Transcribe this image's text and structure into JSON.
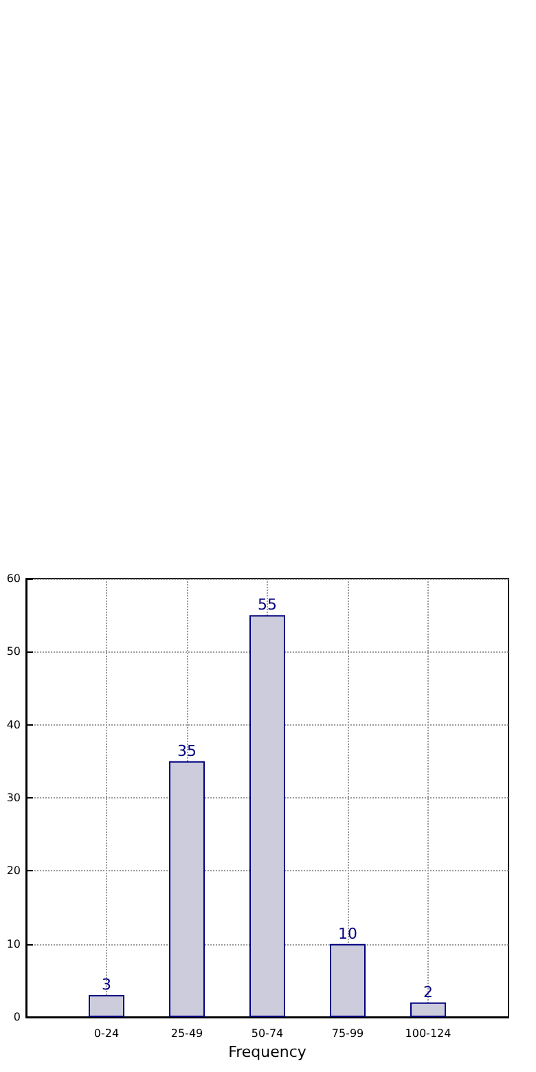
{
  "chart_data": {
    "type": "bar",
    "xlabel": "Frequency",
    "categories": [
      "0-24",
      "25-49",
      "50-74",
      "75-99",
      "100-124"
    ],
    "values": [
      3,
      35,
      55,
      10,
      2
    ],
    "color": "#ccccdd",
    "ylim": [
      0,
      60
    ],
    "yticks": [
      0,
      10,
      20,
      30,
      40,
      50,
      60
    ],
    "grid": true,
    "data_labels": true
  }
}
